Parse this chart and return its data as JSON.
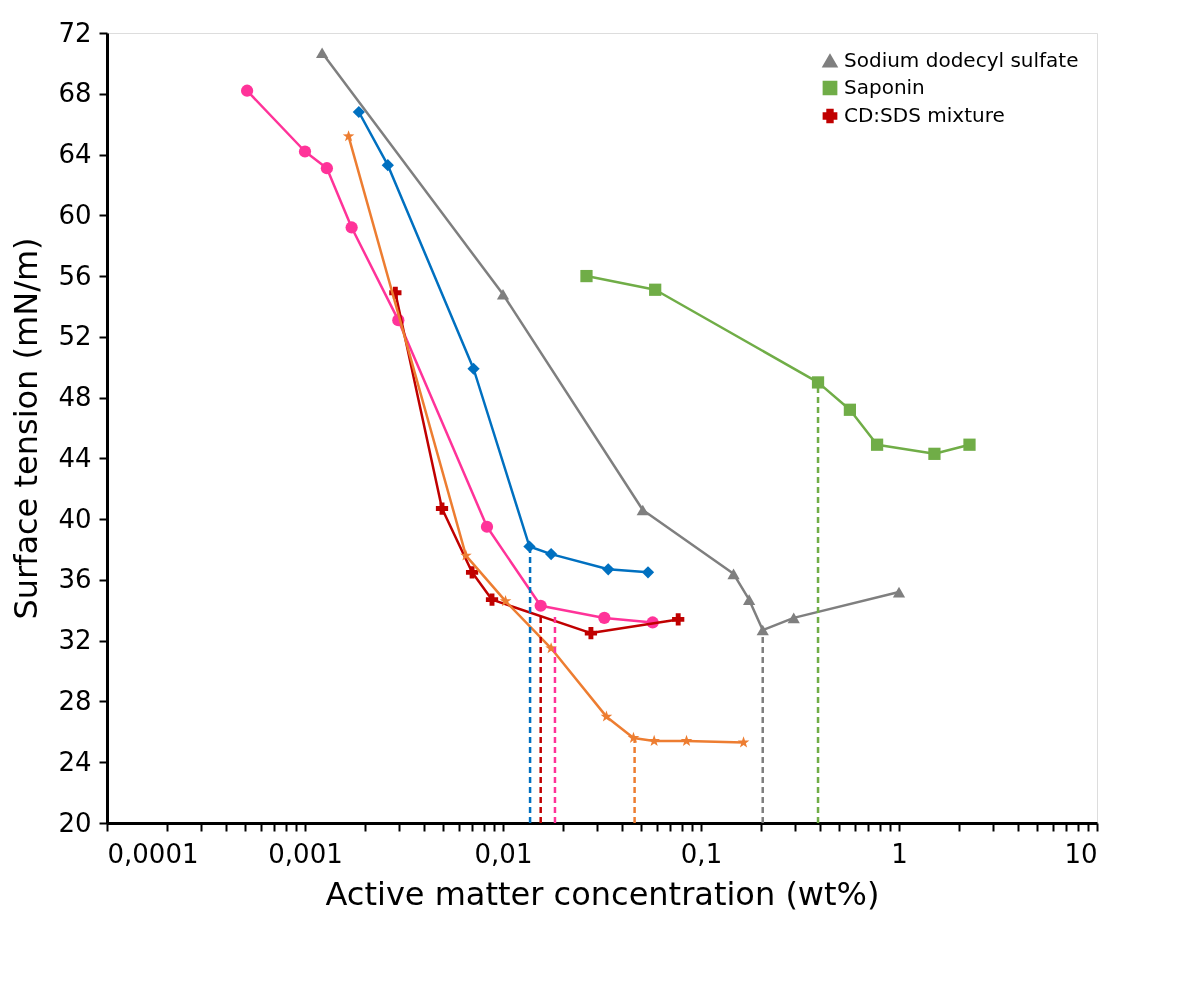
{
  "chart_data": {
    "type": "line",
    "xlabel": "Active matter concentration (wt%)",
    "ylabel": "Surface tension (mN/m)",
    "log": "x",
    "legend": "top right",
    "grid": false,
    "xlim": [
      0.0001,
      10
    ],
    "ylim": [
      20,
      72
    ],
    "yticks": [
      20,
      24,
      28,
      32,
      36,
      40,
      44,
      48,
      52,
      56,
      60,
      64,
      68,
      72
    ],
    "xticks": [
      {
        "value": 0.0001,
        "label": "0,0001"
      },
      {
        "value": 0.0002,
        "label": null
      },
      {
        "value": 0.0003,
        "label": null
      },
      {
        "value": 0.0004,
        "label": null
      },
      {
        "value": 0.0005,
        "label": null
      },
      {
        "value": 0.0006,
        "label": null
      },
      {
        "value": 0.0007,
        "label": null
      },
      {
        "value": 0.0008,
        "label": null
      },
      {
        "value": 0.0009,
        "label": null
      },
      {
        "value": 0.001,
        "label": "0,001"
      },
      {
        "value": 0.002,
        "label": null
      },
      {
        "value": 0.003,
        "label": null
      },
      {
        "value": 0.004,
        "label": null
      },
      {
        "value": 0.005,
        "label": null
      },
      {
        "value": 0.006,
        "label": null
      },
      {
        "value": 0.007,
        "label": null
      },
      {
        "value": 0.008,
        "label": null
      },
      {
        "value": 0.009,
        "label": null
      },
      {
        "value": 0.01,
        "label": "0,01"
      },
      {
        "value": 0.02,
        "label": null
      },
      {
        "value": 0.03,
        "label": null
      },
      {
        "value": 0.04,
        "label": null
      },
      {
        "value": 0.05,
        "label": null
      },
      {
        "value": 0.06,
        "label": null
      },
      {
        "value": 0.07,
        "label": null
      },
      {
        "value": 0.08,
        "label": null
      },
      {
        "value": 0.09,
        "label": null
      },
      {
        "value": 0.1,
        "label": "0,1"
      },
      {
        "value": 0.2,
        "label": null
      },
      {
        "value": 0.3,
        "label": null
      },
      {
        "value": 0.4,
        "label": null
      },
      {
        "value": 0.5,
        "label": null
      },
      {
        "value": 0.6,
        "label": null
      },
      {
        "value": 0.7,
        "label": null
      },
      {
        "value": 0.8,
        "label": null
      },
      {
        "value": 0.9,
        "label": null
      },
      {
        "value": 1,
        "label": "1"
      },
      {
        "value": 2,
        "label": null
      },
      {
        "value": 3,
        "label": null
      },
      {
        "value": 4,
        "label": null
      },
      {
        "value": 5,
        "label": null
      },
      {
        "value": 6,
        "label": null
      },
      {
        "value": 7,
        "label": null
      },
      {
        "value": 8,
        "label": null
      },
      {
        "value": 9,
        "label": null
      },
      {
        "value": 10,
        "label": "10"
      }
    ],
    "series": [
      {
        "color": "#ff3399",
        "marker": "circle",
        "x": [
          0.00051,
          0.001,
          0.00129,
          0.00172,
          0.00296,
          0.0083,
          0.0155,
          0.0325,
          0.057
        ],
        "values": [
          68.2,
          64.2,
          63.1,
          59.2,
          53.1,
          39.5,
          34.3,
          33.5,
          33.2
        ]
      },
      {
        "color": "#0070c0",
        "marker": "diamond",
        "x": [
          0.00187,
          0.00262,
          0.0071,
          0.0136,
          0.0175,
          0.034,
          0.054
        ],
        "values": [
          66.8,
          63.3,
          49.9,
          38.2,
          37.7,
          36.7,
          36.5
        ]
      },
      {
        "name": "Sodium dodecyl sulfate",
        "color": "#7f7f7f",
        "marker": "triangle",
        "x": [
          0.00122,
          0.01,
          0.0508,
          0.146,
          0.175,
          0.205,
          0.294,
          1
        ],
        "values": [
          70.7,
          54.8,
          40.6,
          36.4,
          34.7,
          32.7,
          33.5,
          35.2
        ]
      },
      {
        "name": "Saponin",
        "color": "#70ad47",
        "marker": "square",
        "x": [
          0.0264,
          0.0587,
          0.39,
          0.565,
          0.775,
          1.51,
          2.27
        ],
        "values": [
          56.0,
          55.1,
          49.0,
          47.2,
          44.9,
          44.3,
          44.9
        ]
      },
      {
        "name": "CD:SDS mixture",
        "color": "#c00000",
        "marker": "cross",
        "x": [
          0.00286,
          0.00492,
          0.00698,
          0.0088,
          0.0278,
          0.0767
        ],
        "values": [
          54.9,
          40.7,
          36.5,
          34.7,
          32.5,
          33.4
        ]
      },
      {
        "color": "#ed7d31",
        "marker": "star",
        "x": [
          0.00166,
          0.0065,
          0.0103,
          0.0175,
          0.0333,
          0.0456,
          0.058,
          0.0845,
          0.164
        ],
        "values": [
          65.2,
          37.6,
          34.6,
          31.5,
          27.0,
          25.6,
          25.4,
          25.4,
          25.3
        ]
      },
      {
        "type": "line",
        "color": "#0070c0",
        "marker": "none",
        "line_style": "dashed",
        "x": [
          0.0137,
          0.0137
        ],
        "values": [
          20,
          38.2
        ]
      },
      {
        "type": "line",
        "color": "#c00000",
        "marker": "none",
        "line_style": "dashed",
        "x": [
          0.0155,
          0.0155
        ],
        "values": [
          20,
          33.7
        ]
      },
      {
        "type": "line",
        "color": "#ff3399",
        "marker": "none",
        "line_style": "dashed",
        "x": [
          0.0183,
          0.0183
        ],
        "values": [
          20,
          33.6
        ]
      },
      {
        "type": "line",
        "color": "#ed7d31",
        "marker": "none",
        "line_style": "dashed",
        "x": [
          0.0462,
          0.0462
        ],
        "values": [
          20,
          25.6
        ]
      },
      {
        "type": "line",
        "color": "#7f7f7f",
        "marker": "none",
        "line_style": "dashed",
        "x": [
          0.205,
          0.205
        ],
        "values": [
          20,
          32.7
        ]
      },
      {
        "type": "line",
        "color": "#70ad47",
        "marker": "none",
        "line_style": "dashed",
        "x": [
          0.39,
          0.39
        ],
        "values": [
          20,
          49.0
        ]
      }
    ]
  }
}
